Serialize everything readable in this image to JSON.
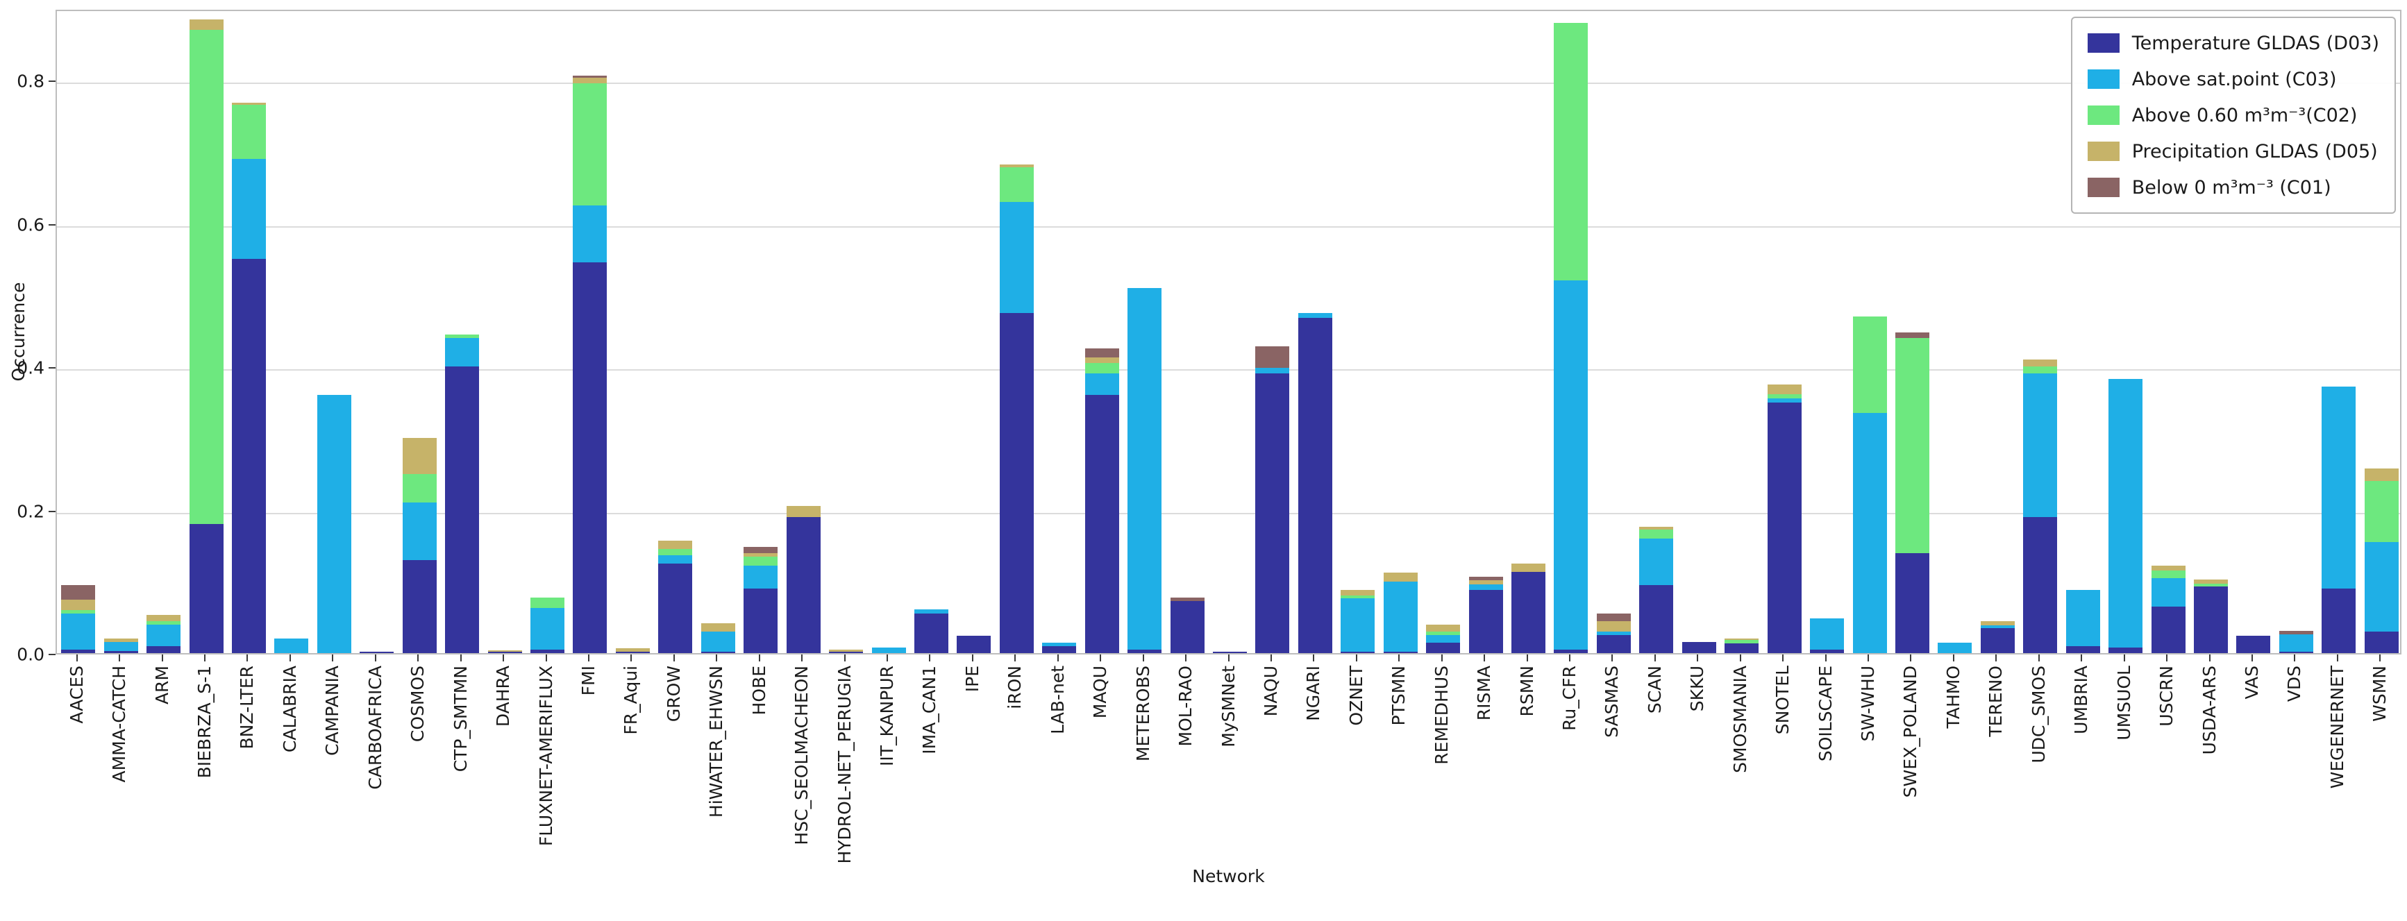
{
  "chart_data": {
    "type": "bar",
    "stacked": true,
    "title": "",
    "xlabel": "Network",
    "ylabel": "Occurrence",
    "ylim": [
      0,
      0.9
    ],
    "yticks": [
      0.0,
      0.2,
      0.4,
      0.6,
      0.8
    ],
    "grid": "horizontal",
    "legend_position": "upper right",
    "categories": [
      "AACES",
      "AMMA-CATCH",
      "ARM",
      "BIEBRZA_S-1",
      "BNZ-LTER",
      "CALABRIA",
      "CAMPANIA",
      "CARBOAFRICA",
      "COSMOS",
      "CTP_SMTMN",
      "DAHRA",
      "FLUXNET-AMERIFLUX",
      "FMI",
      "FR_Aqui",
      "GROW",
      "HiWATER_EHWSN",
      "HOBE",
      "HSC_SEOLMACHEON",
      "HYDROL-NET_PERUGIA",
      "IIT_KANPUR",
      "IMA_CAN1",
      "IPE",
      "iRON",
      "LAB-net",
      "MAQU",
      "METEROBS",
      "MOL-RAO",
      "MySMNet",
      "NAQU",
      "NGARI",
      "OZNET",
      "PTSMN",
      "REMEDHUS",
      "RISMA",
      "RSMN",
      "Ru_CFR",
      "SASMAS",
      "SCAN",
      "SKKU",
      "SMOSMANIA",
      "SNOTEL",
      "SOILSCAPE",
      "SW-WHU",
      "SWEX_POLAND",
      "TAHMO",
      "TERENO",
      "UDC_SMOS",
      "UMBRIA",
      "UMSUOL",
      "USCRN",
      "USDA-ARS",
      "VAS",
      "VDS",
      "WEGENERNET",
      "WSMN"
    ],
    "series": [
      {
        "name": "Temperature GLDAS (D03)",
        "color": "#34349c",
        "values": [
          0.005,
          0.003,
          0.01,
          0.18,
          0.55,
          0,
          0,
          0.002,
          0.13,
          0.4,
          0.002,
          0.005,
          0.545,
          0.002,
          0.125,
          0.002,
          0.09,
          0.19,
          0.002,
          0,
          0.055,
          0.024,
          0.475,
          0.01,
          0.36,
          0.005,
          0.073,
          0.002,
          0.39,
          0.468,
          0.002,
          0.002,
          0.015,
          0.088,
          0.113,
          0.005,
          0.025,
          0.095,
          0.016,
          0.014,
          0.35,
          0.005,
          0,
          0.14,
          0,
          0.035,
          0.19,
          0.01,
          0.008,
          0.065,
          0.093,
          0.024,
          0.002,
          0.09,
          0.03
        ]
      },
      {
        "name": "Above sat.point (C03)",
        "color": "#1fafe6",
        "values": [
          0.05,
          0.013,
          0.03,
          0,
          0.14,
          0.02,
          0.36,
          0,
          0.08,
          0.04,
          0,
          0.058,
          0.08,
          0,
          0.012,
          0.028,
          0.032,
          0,
          0,
          0.008,
          0.006,
          0,
          0.155,
          0.005,
          0.03,
          0.505,
          0,
          0,
          0.008,
          0.007,
          0.075,
          0.098,
          0.01,
          0.008,
          0,
          0.515,
          0.005,
          0.065,
          0,
          0,
          0.006,
          0.043,
          0.335,
          0,
          0.015,
          0.004,
          0.2,
          0.078,
          0.375,
          0.04,
          0,
          0,
          0.024,
          0.282,
          0.125
        ]
      },
      {
        "name": "Above 0.60 m³m⁻³(C02)",
        "color": "#6de87f",
        "values": [
          0.005,
          0,
          0.005,
          0.69,
          0.075,
          0,
          0,
          0,
          0.04,
          0.005,
          0,
          0.015,
          0.17,
          0,
          0.008,
          0,
          0.013,
          0,
          0,
          0,
          0,
          0,
          0.048,
          0,
          0.015,
          0,
          0,
          0,
          0,
          0,
          0.003,
          0,
          0.005,
          0,
          0,
          0.36,
          0,
          0.012,
          0,
          0.004,
          0.005,
          0,
          0.135,
          0.3,
          0,
          0,
          0.01,
          0,
          0,
          0.01,
          0.004,
          0,
          0,
          0,
          0.085
        ]
      },
      {
        "name": "Precipitation GLDAS (D05)",
        "color": "#c6b369",
        "values": [
          0.015,
          0.004,
          0.008,
          0.015,
          0.003,
          0,
          0,
          0,
          0.05,
          0,
          0.002,
          0,
          0.008,
          0.005,
          0.012,
          0.012,
          0.005,
          0.015,
          0.003,
          0,
          0,
          0,
          0.004,
          0,
          0.008,
          0,
          0,
          0,
          0,
          0,
          0.008,
          0.012,
          0.01,
          0.006,
          0.012,
          0,
          0.015,
          0.004,
          0,
          0.002,
          0.014,
          0,
          0,
          0,
          0,
          0.006,
          0.01,
          0,
          0,
          0.007,
          0.006,
          0,
          0,
          0,
          0.018
        ]
      },
      {
        "name": "Below 0 m³m⁻³ (C01)",
        "color": "#8a6464",
        "values": [
          0.02,
          0,
          0,
          0,
          0,
          0,
          0,
          0,
          0,
          0,
          0,
          0,
          0.003,
          0,
          0,
          0,
          0.008,
          0,
          0,
          0,
          0,
          0,
          0,
          0,
          0.012,
          0,
          0.005,
          0,
          0.03,
          0,
          0,
          0,
          0,
          0.005,
          0,
          0,
          0.01,
          0,
          0,
          0,
          0,
          0,
          0,
          0.008,
          0,
          0,
          0,
          0,
          0,
          0,
          0,
          0,
          0.005,
          0,
          0
        ]
      }
    ]
  }
}
